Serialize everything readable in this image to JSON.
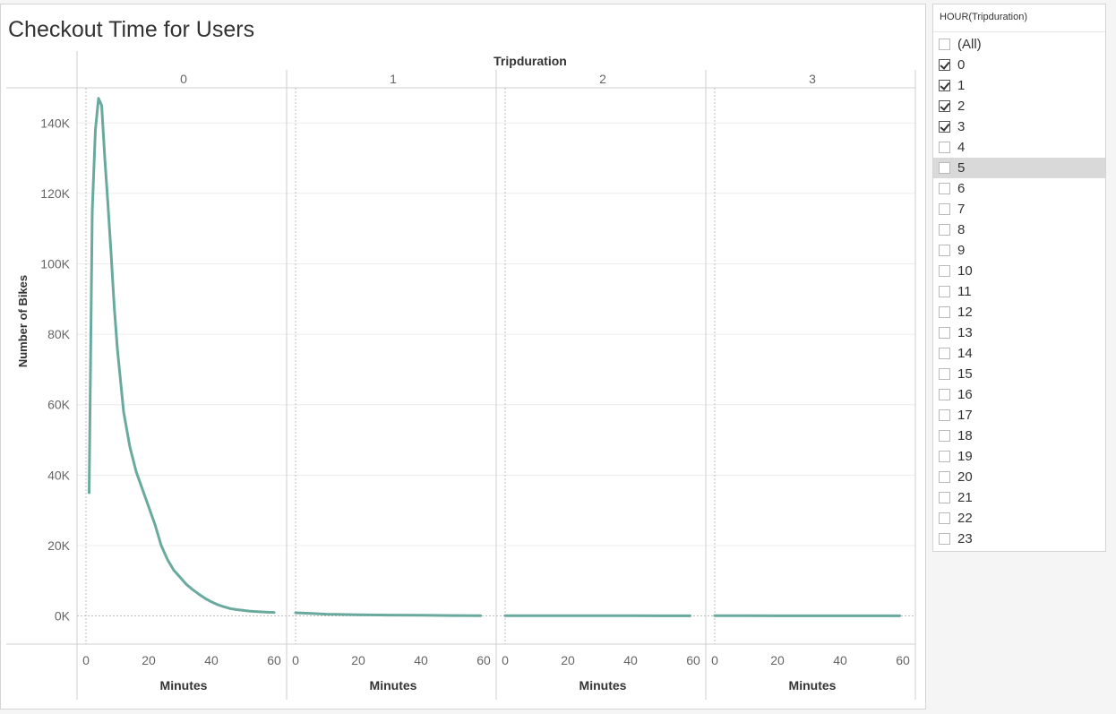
{
  "dashboard": {
    "title": "Checkout Time for Users"
  },
  "colors": {
    "series": "#6aaa9e",
    "gridline": "#ececec",
    "pane_border": "#cfcfcf"
  },
  "chart_data": {
    "type": "line",
    "title": "Checkout Time for Users",
    "column_header": "Tripduration",
    "ylabel": "Number of Bikes",
    "xlabel": "Minutes",
    "ylim": [
      -8000,
      150000
    ],
    "xlim": [
      -3,
      62
    ],
    "yticks": [
      0,
      20000,
      40000,
      60000,
      80000,
      100000,
      120000,
      140000
    ],
    "ytick_labels": [
      "0K",
      "20K",
      "40K",
      "60K",
      "80K",
      "100K",
      "120K",
      "140K"
    ],
    "xticks": [
      0,
      20,
      40,
      60
    ],
    "xtick_labels": [
      "0",
      "20",
      "40",
      "60"
    ],
    "grid": "horizontal",
    "panels": [
      {
        "name": "0",
        "x": [
          1,
          2,
          3,
          4,
          5,
          6,
          7,
          8,
          9,
          10,
          12,
          14,
          16,
          18,
          20,
          22,
          24,
          26,
          28,
          30,
          32,
          34,
          36,
          38,
          40,
          42,
          44,
          46,
          48,
          50,
          52,
          54,
          56,
          58,
          60
        ],
        "y": [
          35000,
          115000,
          138000,
          147000,
          145000,
          130000,
          117000,
          103000,
          88000,
          76000,
          58000,
          48000,
          41000,
          36000,
          31000,
          26000,
          20000,
          16000,
          13000,
          11000,
          9000,
          7500,
          6200,
          5000,
          4000,
          3200,
          2600,
          2100,
          1800,
          1600,
          1400,
          1250,
          1150,
          1050,
          1000
        ]
      },
      {
        "name": "1",
        "x": [
          0,
          5,
          10,
          20,
          30,
          40,
          50,
          59
        ],
        "y": [
          900,
          700,
          500,
          350,
          250,
          180,
          120,
          90
        ]
      },
      {
        "name": "2",
        "x": [
          0,
          10,
          20,
          30,
          40,
          50,
          59
        ],
        "y": [
          100,
          90,
          80,
          70,
          60,
          50,
          40
        ]
      },
      {
        "name": "3",
        "x": [
          0,
          10,
          20,
          30,
          40,
          50,
          59
        ],
        "y": [
          60,
          55,
          50,
          45,
          40,
          35,
          30
        ]
      }
    ]
  },
  "filter": {
    "title": "HOUR(Tripduration)",
    "items": [
      {
        "label": "(All)",
        "checked": false
      },
      {
        "label": "0",
        "checked": true
      },
      {
        "label": "1",
        "checked": true
      },
      {
        "label": "2",
        "checked": true
      },
      {
        "label": "3",
        "checked": true
      },
      {
        "label": "4",
        "checked": false
      },
      {
        "label": "5",
        "checked": false,
        "highlight": true
      },
      {
        "label": "6",
        "checked": false
      },
      {
        "label": "7",
        "checked": false
      },
      {
        "label": "8",
        "checked": false
      },
      {
        "label": "9",
        "checked": false
      },
      {
        "label": "10",
        "checked": false
      },
      {
        "label": "11",
        "checked": false
      },
      {
        "label": "12",
        "checked": false
      },
      {
        "label": "13",
        "checked": false
      },
      {
        "label": "14",
        "checked": false
      },
      {
        "label": "15",
        "checked": false
      },
      {
        "label": "16",
        "checked": false
      },
      {
        "label": "17",
        "checked": false
      },
      {
        "label": "18",
        "checked": false
      },
      {
        "label": "19",
        "checked": false
      },
      {
        "label": "20",
        "checked": false
      },
      {
        "label": "21",
        "checked": false
      },
      {
        "label": "22",
        "checked": false
      },
      {
        "label": "23",
        "checked": false
      }
    ]
  }
}
